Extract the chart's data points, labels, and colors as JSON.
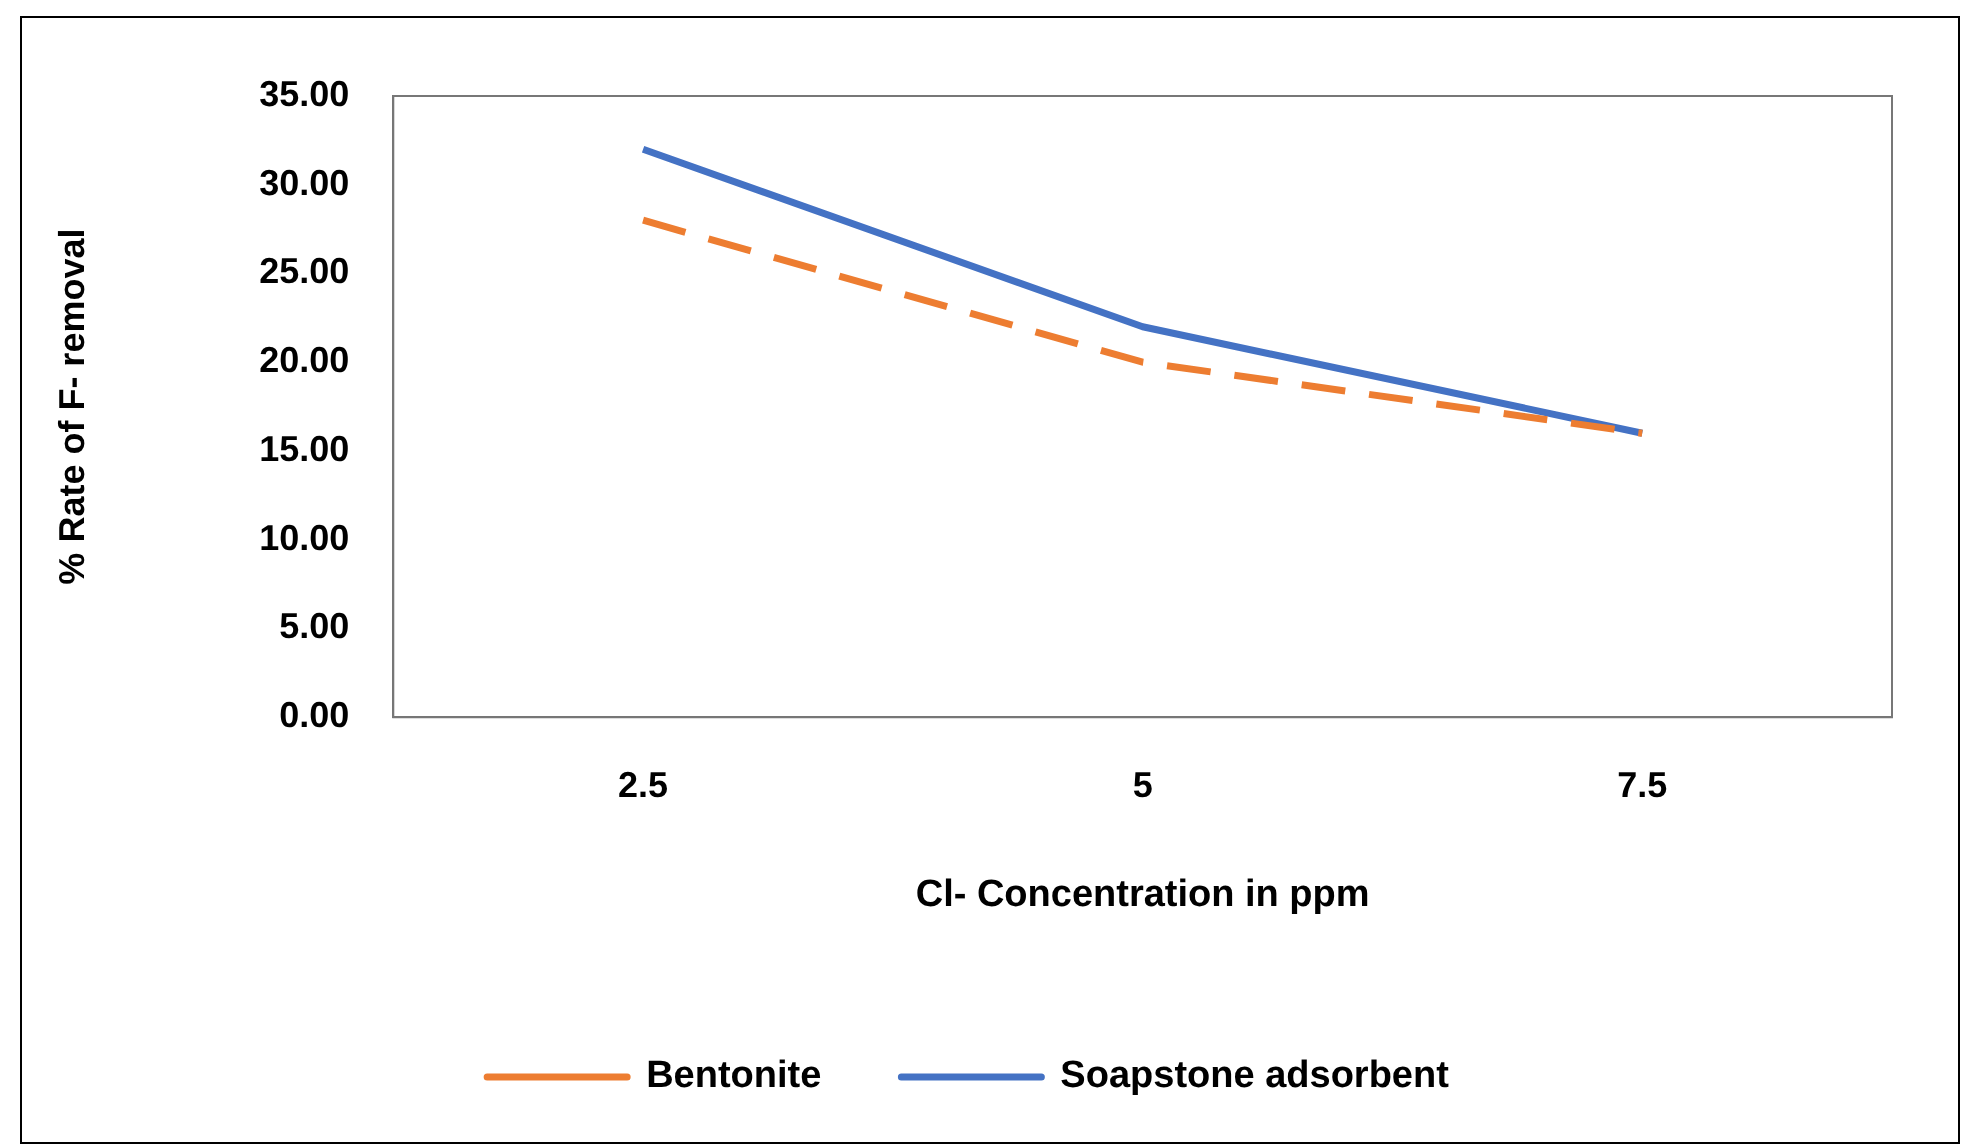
{
  "chart_data": {
    "type": "line",
    "xlabel": "Cl- Concentration in ppm",
    "ylabel": "% Rate of F- removal",
    "categories": [
      "2.5",
      "5",
      "7.5"
    ],
    "series": [
      {
        "name": "Bentonite",
        "color": "#ed7d31",
        "line_style": "dashed",
        "values": [
          28,
          20,
          16
        ]
      },
      {
        "name": "Soapstone adsorbent",
        "color": "#4472c4",
        "line_style": "solid",
        "values": [
          32,
          22,
          16
        ]
      }
    ],
    "ylim": [
      0,
      35
    ],
    "yticks": [
      {
        "value": 0,
        "label": "0.00"
      },
      {
        "value": 5,
        "label": "5.00"
      },
      {
        "value": 10,
        "label": "10.00"
      },
      {
        "value": 15,
        "label": "15.00"
      },
      {
        "value": 20,
        "label": "20.00"
      },
      {
        "value": 25,
        "label": "25.00"
      },
      {
        "value": 30,
        "label": "30.00"
      },
      {
        "value": 35,
        "label": "35.00"
      }
    ],
    "grid": false,
    "legend": "bottom",
    "marker": "none"
  }
}
